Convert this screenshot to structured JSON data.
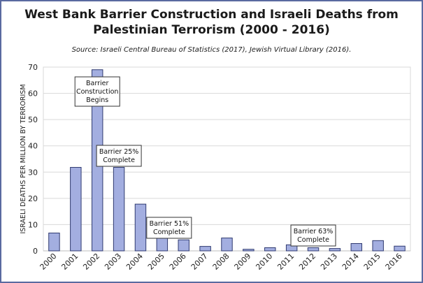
{
  "chart_data": {
    "type": "bar",
    "title_line1": "West Bank Barrier Construction and Israeli Deaths from",
    "title_line2": "Palestinian Terrorism (2000 - 2016)",
    "subtitle": "Source:  Israeli Central Bureau of Statistics  (2017), Jewish Virtual Library  (2016).",
    "xlabel": "",
    "ylabel": "ISRAELI DEATHS PER MILLION BY TERRORISM",
    "ylim": [
      0,
      70
    ],
    "yticks": [
      "0",
      "10",
      "20",
      "30",
      "40",
      "50",
      "60",
      "70"
    ],
    "categories": [
      "2000",
      "2001",
      "2002",
      "2003",
      "2004",
      "2005",
      "2006",
      "2007",
      "2008",
      "2009",
      "2010",
      "2011",
      "2012",
      "2013",
      "2014",
      "2015",
      "2016"
    ],
    "values": [
      6.8,
      31.8,
      69,
      31.8,
      17.8,
      7.5,
      4.2,
      1.7,
      4.9,
      0.6,
      1.2,
      2.3,
      1.2,
      0.9,
      2.8,
      3.9,
      1.8
    ],
    "grid": true,
    "bar_fill": "#a3aee0",
    "bar_stroke": "#2f3a70",
    "frame_color": "#5a6aa0",
    "annotations": [
      {
        "lines": [
          "Barrier",
          "Construction",
          "Begins"
        ],
        "category": "2002"
      },
      {
        "lines": [
          "Barrier 25%",
          "Complete"
        ],
        "category": "2003"
      },
      {
        "lines": [
          "Barrier 51%",
          "Complete"
        ],
        "category": "2005"
      },
      {
        "lines": [
          "Barrier 63%",
          "Complete"
        ],
        "category": "2012"
      }
    ]
  }
}
